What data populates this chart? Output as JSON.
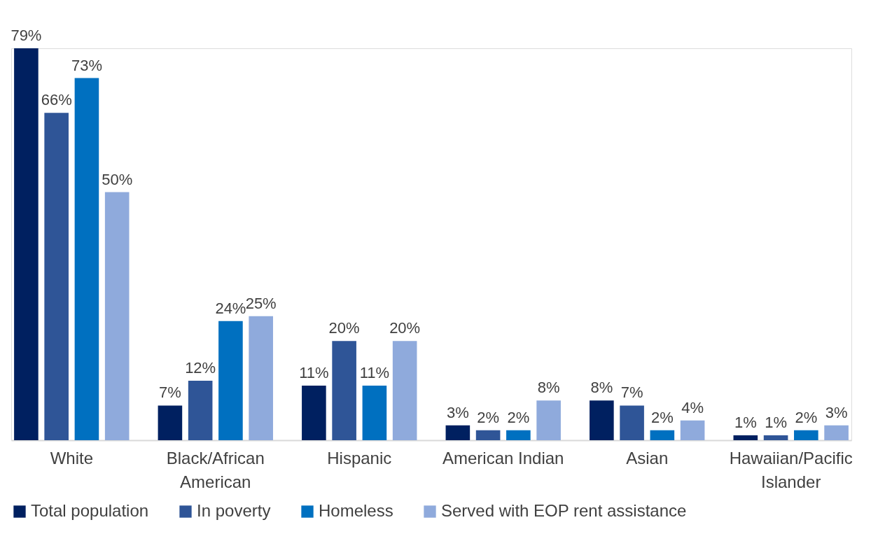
{
  "chart_data": {
    "type": "bar",
    "categories": [
      "White",
      "Black/African American",
      "Hispanic",
      "American Indian",
      "Asian",
      "Hawaiian/Pacific Islander"
    ],
    "series": [
      {
        "name": "Total population",
        "color": "#002060",
        "values": [
          79,
          7,
          11,
          3,
          8,
          1
        ],
        "value_labels": [
          "79%",
          "7%",
          "11%",
          "3%",
          "8%",
          "1%"
        ]
      },
      {
        "name": "In poverty",
        "color": "#2f5597",
        "values": [
          66,
          12,
          20,
          2,
          7,
          1
        ],
        "value_labels": [
          "66%",
          "12%",
          "20%",
          "2%",
          "7%",
          "1%"
        ]
      },
      {
        "name": "Homeless",
        "color": "#0070c0",
        "values": [
          73,
          24,
          11,
          2,
          2,
          2
        ],
        "value_labels": [
          "73%",
          "24%",
          "11%",
          "2%",
          "2%",
          "2%"
        ]
      },
      {
        "name": "Served with EOP rent assistance",
        "color": "#8faadc",
        "values": [
          50,
          25,
          20,
          8,
          4,
          3
        ],
        "value_labels": [
          "50%",
          "25%",
          "20%",
          "8%",
          "4%",
          "3%"
        ]
      }
    ],
    "legend": "bottom",
    "grid": false
  }
}
